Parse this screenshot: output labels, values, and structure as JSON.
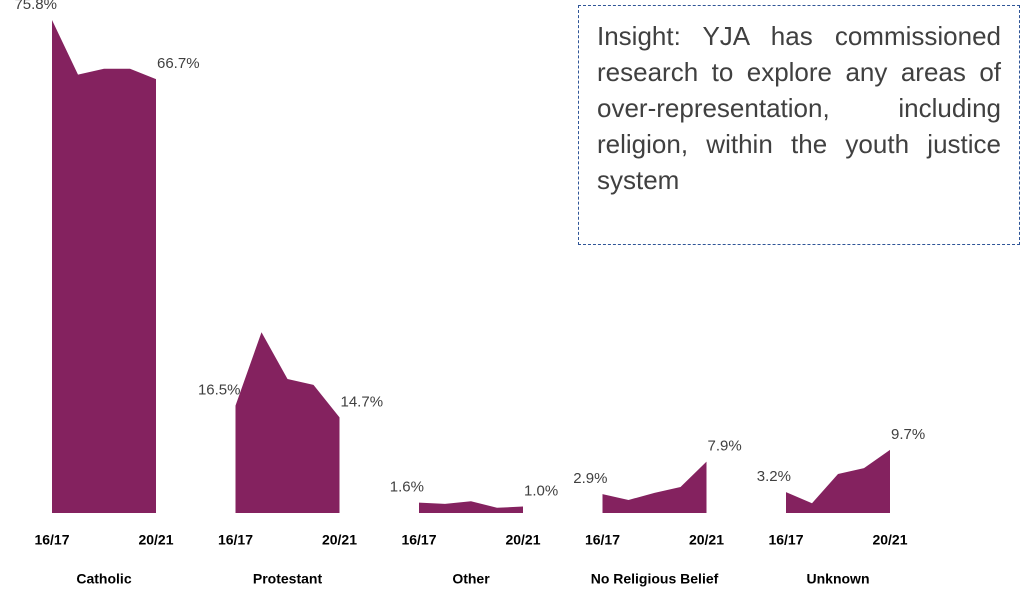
{
  "chart_data": {
    "type": "area",
    "categories": [
      "16/17",
      null,
      null,
      null,
      "20/21"
    ],
    "series": [
      {
        "name": "Catholic",
        "color": "#84225f",
        "values": [
          75.8,
          67.4,
          68.3,
          68.3,
          66.7
        ],
        "value_labels": [
          "75.8%",
          null,
          null,
          null,
          "66.7%"
        ]
      },
      {
        "name": "Protestant",
        "color": "#84225f",
        "values": [
          16.5,
          27.8,
          20.6,
          19.7,
          14.7
        ],
        "value_labels": [
          "16.5%",
          null,
          null,
          null,
          "14.7%"
        ]
      },
      {
        "name": "Other",
        "color": "#84225f",
        "values": [
          1.6,
          1.4,
          1.8,
          0.8,
          1.0
        ],
        "value_labels": [
          "1.6%",
          null,
          null,
          null,
          "1.0%"
        ]
      },
      {
        "name": "No Religious Belief",
        "color": "#84225f",
        "values": [
          2.9,
          2.0,
          3.1,
          4.0,
          7.9
        ],
        "value_labels": [
          "2.9%",
          null,
          null,
          null,
          "7.9%"
        ]
      },
      {
        "name": "Unknown",
        "color": "#84225f",
        "values": [
          3.2,
          1.5,
          6.0,
          6.9,
          9.7
        ],
        "value_labels": [
          "3.2%",
          null,
          null,
          null,
          "9.7%"
        ]
      }
    ],
    "annotation": "Insight: YJA has commissioned research to explore any areas of over-representation, including religion, within the youth justice system"
  }
}
